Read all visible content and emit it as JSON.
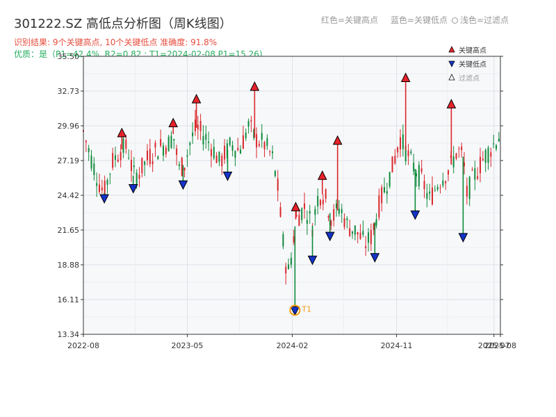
{
  "title": "301222.SZ 高低点分析图（周K线图）",
  "subtitle": "识别结果: 9个关键高点, 10个关键低点  准确度: 91.8%",
  "status": "优质：是（P1=42.4%, R2=0.82 ; T1=2024-02-08 P1=15.26)",
  "top_legend": {
    "red": "红色=关键高点",
    "blue": "蓝色=关键低点",
    "filtered": "浅色=过滤点"
  },
  "colors": {
    "up": "#d9262b",
    "down": "#0d8a3a",
    "high_marker": "#e8222a",
    "low_marker": "#1433c8",
    "t1_ring": "#f39c12",
    "grid": "#dde1e8",
    "plot_bg": "#f7f8fa",
    "subtitle": "#e74c3c",
    "status": "#27ae60"
  },
  "chart_data": {
    "type": "candlestick",
    "ylim": [
      13.34,
      35.5
    ],
    "y_ticks": [
      "35.50",
      "32.73",
      "29.96",
      "27.19",
      "24.42",
      "21.65",
      "18.88",
      "16.11",
      "13.34"
    ],
    "x_ticks": [
      "2022-08",
      "2023-05",
      "2024-02",
      "2024-11",
      "2025-07",
      "2025-08"
    ],
    "x_date_range": [
      "2022-08-01",
      "2025-08-01"
    ],
    "legend": [
      {
        "label": "关键高点",
        "marker": "high"
      },
      {
        "label": "关键低点",
        "marker": "low"
      },
      {
        "label": "过滤点",
        "marker": "filtered"
      }
    ],
    "close_path": [
      [
        "2022-08-01",
        29.5
      ],
      [
        "2022-08-20",
        27.5
      ],
      [
        "2022-09-10",
        25.5
      ],
      [
        "2022-09-25",
        24.6
      ],
      [
        "2022-10-15",
        27.0
      ],
      [
        "2022-11-05",
        28.0
      ],
      [
        "2022-11-25",
        28.3
      ],
      [
        "2022-12-10",
        26.0
      ],
      [
        "2022-12-25",
        26.2
      ],
      [
        "2023-01-20",
        27.5
      ],
      [
        "2023-02-20",
        28.3
      ],
      [
        "2023-03-15",
        28.6
      ],
      [
        "2023-03-25",
        29.3
      ],
      [
        "2023-04-10",
        26.5
      ],
      [
        "2023-04-25",
        27.0
      ],
      [
        "2023-05-10",
        28.8
      ],
      [
        "2023-05-25",
        29.8
      ],
      [
        "2023-06-20",
        29.0
      ],
      [
        "2023-07-10",
        28.0
      ],
      [
        "2023-07-25",
        27.0
      ],
      [
        "2023-08-25",
        28.5
      ],
      [
        "2023-09-15",
        28.0
      ],
      [
        "2023-10-10",
        30.0
      ],
      [
        "2023-10-25",
        29.0
      ],
      [
        "2023-11-20",
        28.5
      ],
      [
        "2023-12-10",
        27.5
      ],
      [
        "2023-12-25",
        25.0
      ],
      [
        "2024-01-10",
        20.0
      ],
      [
        "2024-01-20",
        18.0
      ],
      [
        "2024-02-01",
        20.0
      ],
      [
        "2024-02-10",
        22.5
      ],
      [
        "2024-03-05",
        23.5
      ],
      [
        "2024-03-25",
        22.0
      ],
      [
        "2024-04-10",
        24.5
      ],
      [
        "2024-04-25",
        24.5
      ],
      [
        "2024-05-15",
        22.5
      ],
      [
        "2024-06-05",
        23.5
      ],
      [
        "2024-06-25",
        22.0
      ],
      [
        "2024-07-20",
        21.5
      ],
      [
        "2024-08-10",
        20.5
      ],
      [
        "2024-08-25",
        21.0
      ],
      [
        "2024-09-20",
        24.0
      ],
      [
        "2024-10-20",
        26.5
      ],
      [
        "2024-11-10",
        29.0
      ],
      [
        "2024-12-10",
        27.0
      ],
      [
        "2025-01-10",
        25.5
      ],
      [
        "2025-01-25",
        24.0
      ],
      [
        "2025-02-20",
        25.5
      ],
      [
        "2025-03-20",
        26.5
      ],
      [
        "2025-04-10",
        28.0
      ],
      [
        "2025-04-25",
        27.5
      ],
      [
        "2025-05-05",
        24.5
      ],
      [
        "2025-05-25",
        26.0
      ],
      [
        "2025-06-20",
        27.5
      ],
      [
        "2025-07-15",
        28.5
      ],
      [
        "2025-08-01",
        29.3
      ]
    ],
    "key_highs": [
      {
        "date": "2022-11-10",
        "price": 29.3
      },
      {
        "date": "2023-03-25",
        "price": 30.1
      },
      {
        "date": "2023-05-25",
        "price": 32.0
      },
      {
        "date": "2023-10-25",
        "price": 33.0
      },
      {
        "date": "2024-02-10",
        "price": 23.4
      },
      {
        "date": "2024-04-20",
        "price": 25.9
      },
      {
        "date": "2024-05-30",
        "price": 28.7
      },
      {
        "date": "2024-11-25",
        "price": 33.7
      },
      {
        "date": "2025-03-25",
        "price": 31.6
      }
    ],
    "key_lows": [
      {
        "date": "2022-09-25",
        "price": 24.2
      },
      {
        "date": "2022-12-10",
        "price": 25.0
      },
      {
        "date": "2023-04-20",
        "price": 25.3
      },
      {
        "date": "2023-08-15",
        "price": 26.0
      },
      {
        "date": "2024-02-08",
        "price": 15.26
      },
      {
        "date": "2024-03-25",
        "price": 19.3
      },
      {
        "date": "2024-05-10",
        "price": 21.2
      },
      {
        "date": "2024-09-05",
        "price": 19.5
      },
      {
        "date": "2024-12-20",
        "price": 22.9
      },
      {
        "date": "2025-04-25",
        "price": 21.1
      }
    ],
    "annotations": [
      {
        "label": "T1",
        "date": "2024-02-08",
        "price": 15.26
      }
    ]
  }
}
